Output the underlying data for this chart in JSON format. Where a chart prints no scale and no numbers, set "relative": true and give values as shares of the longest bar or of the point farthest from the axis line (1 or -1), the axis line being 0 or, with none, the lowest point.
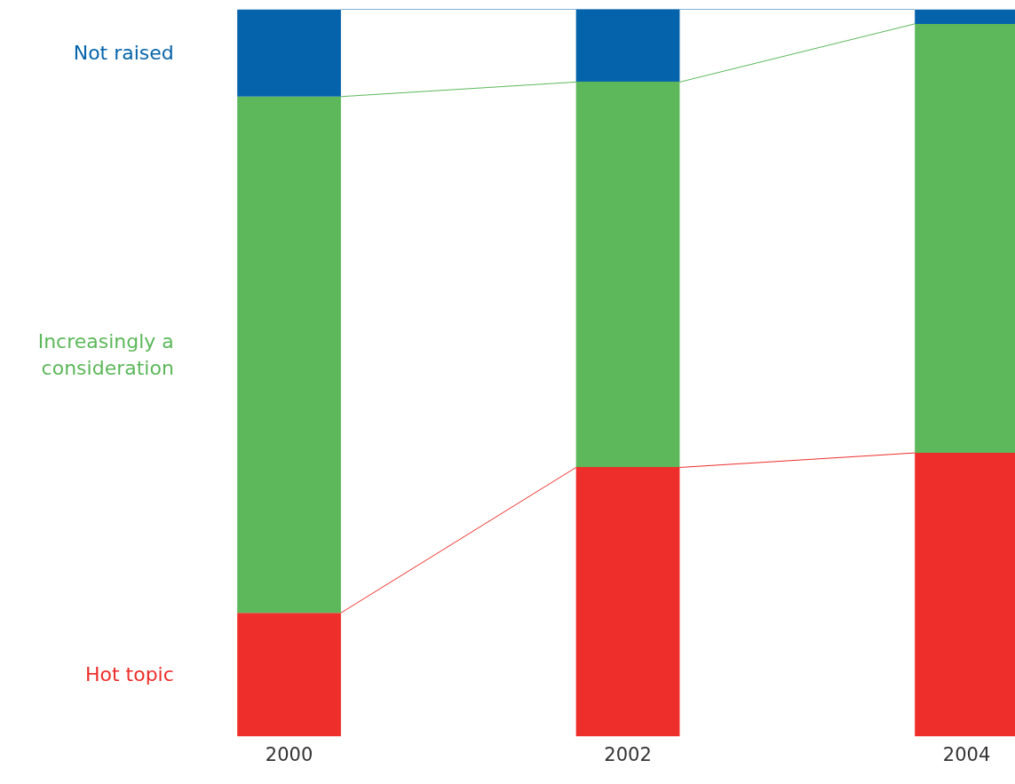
{
  "chart_data": {
    "type": "bar",
    "stacked": true,
    "relative": true,
    "categories": [
      "2000",
      "2002",
      "2004"
    ],
    "series": [
      {
        "name": "Hot topic",
        "color": "#ee2e2a",
        "values": [
          0.17,
          0.37,
          0.39
        ]
      },
      {
        "name": "Increasingly a consideration",
        "color": "#5cb85a",
        "values": [
          0.71,
          0.53,
          0.59
        ]
      },
      {
        "name": "Not raised",
        "color": "#0563ab",
        "values": [
          0.12,
          0.1,
          0.02
        ]
      }
    ],
    "grid": false
  }
}
